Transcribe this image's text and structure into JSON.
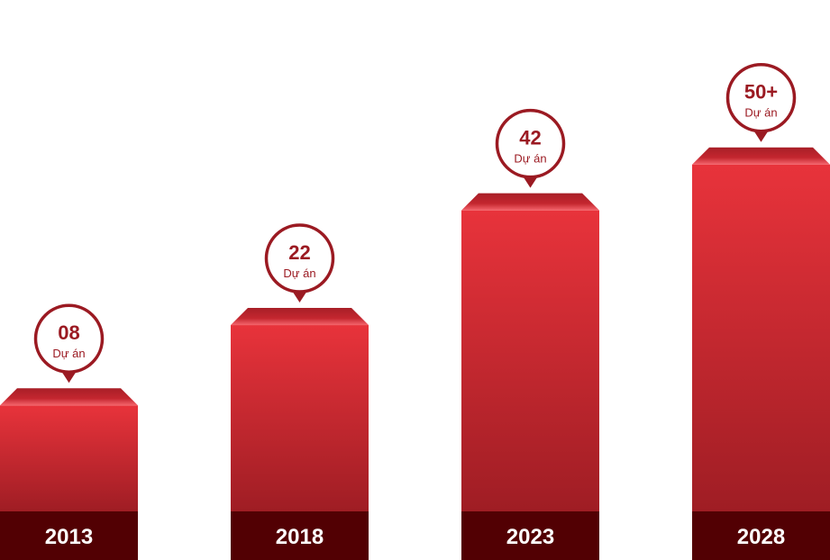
{
  "chart_data": {
    "type": "bar",
    "categories": [
      "2013",
      "2018",
      "2023",
      "2028"
    ],
    "values": [
      8,
      22,
      42,
      50
    ],
    "value_labels": [
      "08",
      "22",
      "42",
      "50+"
    ],
    "unit_label": "Dự án",
    "colors": {
      "bar_top": "#e8333b",
      "bar_bottom": "#9f1d24",
      "bar_cap": "#b3242c",
      "base": "#520003",
      "marker_border": "#9b1a22",
      "marker_fill": "#ffffff"
    }
  }
}
